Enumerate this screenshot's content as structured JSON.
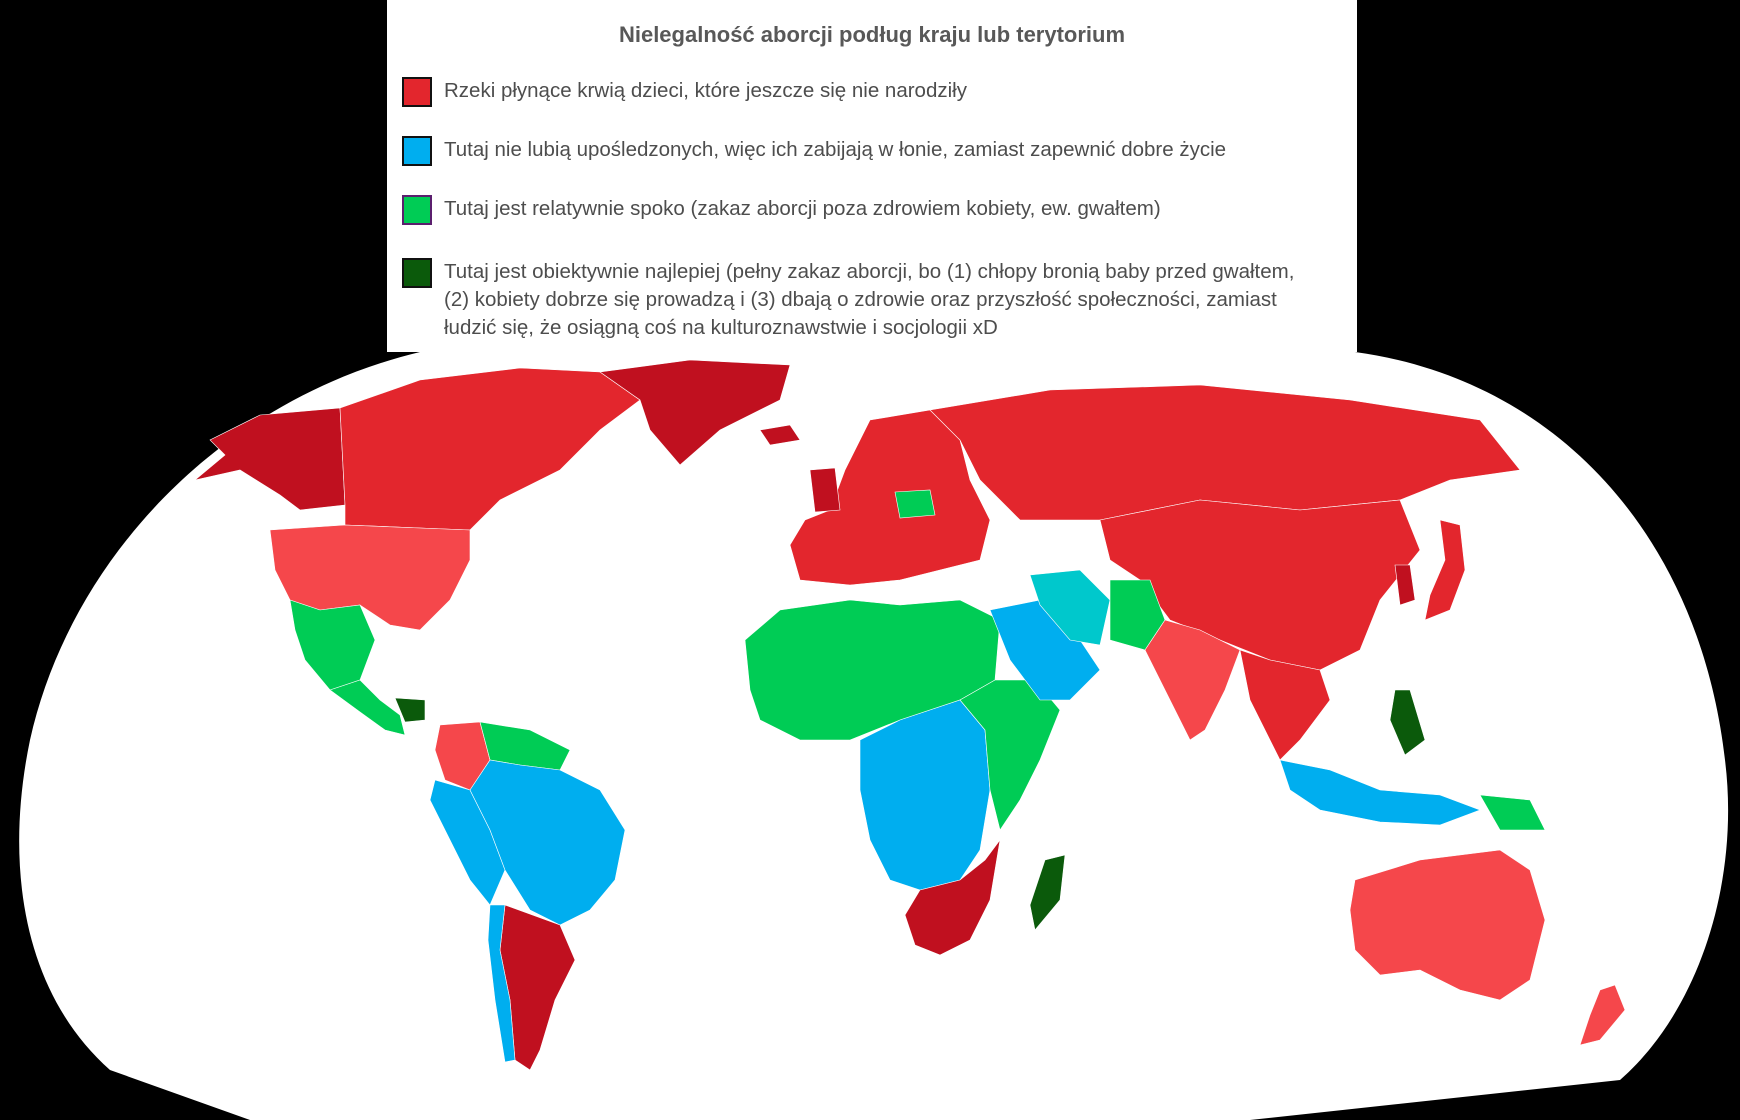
{
  "legend": {
    "title": "Nielegalność aborcji podług kraju lub terytorium",
    "items": [
      {
        "label": "Rzeki płynące krwią dzieci, które jeszcze się nie narodziły",
        "color": "#e3262d",
        "border": "#111111"
      },
      {
        "label": "Tutaj nie lubią upośledzonych, więc ich zabijają w łonie, zamiast zapewnić dobre życie",
        "color": "#00aeef",
        "border": "#111111"
      },
      {
        "label": "Tutaj jest relatywnie spoko (zakaz aborcji poza zdrowiem kobiety, ew. gwałtem)",
        "color": "#00cc55",
        "border": "#5b1f6e"
      },
      {
        "label": "Tutaj jest obiektywnie najlepiej (pełny zakaz  aborcji, bo (1) chłopy bronią baby przed gwałtem, (2) kobiety dobrze się prowadzą i (3) dbają o zdrowie oraz przyszłość społeczności, zamiast łudzić się, że osiągną coś na kulturoznawstwie i socjologii xD",
        "color": "#0b5a0b",
        "border": "#111111"
      }
    ]
  },
  "map": {
    "colors": {
      "red": "#e3262d",
      "red_light": "#f5474b",
      "red_dark": "#c0101f",
      "blue": "#00aeef",
      "green": "#00cc55",
      "dark_green": "#0b5a0b",
      "cyan": "#00c8cc",
      "ocean": "#ffffff",
      "background": "#000000"
    },
    "regions": [
      {
        "name": "Alaska",
        "category": "red_dark"
      },
      {
        "name": "Canada",
        "category": "red"
      },
      {
        "name": "Greenland",
        "category": "red_dark"
      },
      {
        "name": "United States",
        "category": "red_light"
      },
      {
        "name": "Mexico",
        "category": "green"
      },
      {
        "name": "Central America",
        "category": "green"
      },
      {
        "name": "Nicaragua",
        "category": "dark_green"
      },
      {
        "name": "Venezuela",
        "category": "green"
      },
      {
        "name": "Colombia",
        "category": "red_light"
      },
      {
        "name": "Brazil",
        "category": "blue"
      },
      {
        "name": "Peru / Bolivia",
        "category": "blue"
      },
      {
        "name": "Argentina",
        "category": "red_dark"
      },
      {
        "name": "Chile",
        "category": "blue"
      },
      {
        "name": "Iceland",
        "category": "red_dark"
      },
      {
        "name": "Europe",
        "category": "red"
      },
      {
        "name": "Poland",
        "category": "green"
      },
      {
        "name": "Russia",
        "category": "red"
      },
      {
        "name": "North Africa",
        "category": "green"
      },
      {
        "name": "Central Africa",
        "category": "blue"
      },
      {
        "name": "East Africa",
        "category": "green"
      },
      {
        "name": "Southern Africa",
        "category": "red_dark"
      },
      {
        "name": "Madagascar",
        "category": "dark_green"
      },
      {
        "name": "Arabia",
        "category": "blue"
      },
      {
        "name": "Iran",
        "category": "cyan"
      },
      {
        "name": "Afghanistan / Pakistan",
        "category": "green"
      },
      {
        "name": "India",
        "category": "red_light"
      },
      {
        "name": "China",
        "category": "red"
      },
      {
        "name": "Japan",
        "category": "red"
      },
      {
        "name": "Korea",
        "category": "red_dark"
      },
      {
        "name": "Southeast Asia",
        "category": "red"
      },
      {
        "name": "Philippines",
        "category": "dark_green"
      },
      {
        "name": "Indonesia",
        "category": "blue"
      },
      {
        "name": "Papua New Guinea",
        "category": "green"
      },
      {
        "name": "Australia",
        "category": "red_light"
      },
      {
        "name": "New Zealand",
        "category": "red_light"
      }
    ]
  }
}
